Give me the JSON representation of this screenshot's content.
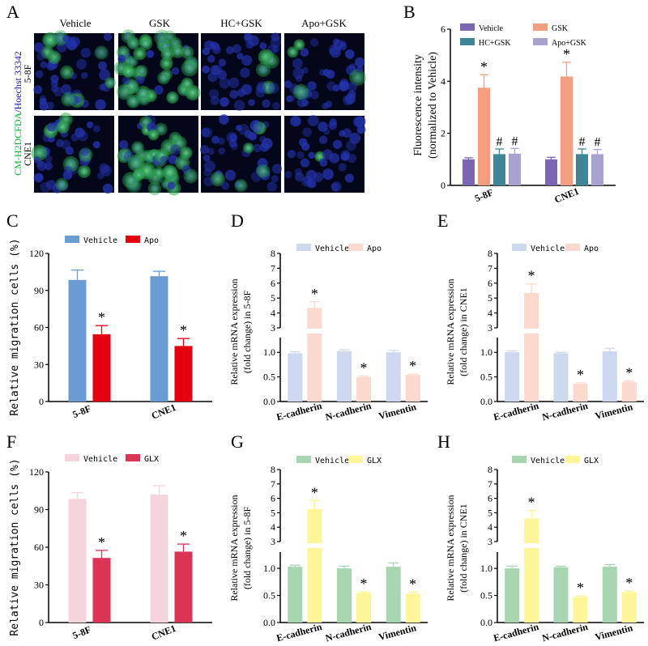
{
  "figure": {
    "panel_labels": [
      "A",
      "B",
      "C",
      "D",
      "E",
      "F",
      "G",
      "H"
    ]
  },
  "micro": {
    "columns": [
      "Vehicle",
      "GSK",
      "HC+GSK",
      "Apo+GSK"
    ],
    "rows": [
      "5-8F",
      "CNE1"
    ],
    "ylabel_green": "CM-H2DCFDA",
    "ylabel_sep": "/",
    "ylabel_blue": "Hoechst 33342",
    "green_level": [
      [
        0.18,
        0.85,
        0.12,
        0.1
      ],
      [
        0.1,
        0.8,
        0.08,
        0.08
      ]
    ]
  },
  "chart_data": [
    {
      "id": "B",
      "type": "bar",
      "title": "",
      "ylabel_lines": [
        "Fluorescence intensity",
        "(normalized to Vehicle)"
      ],
      "ylim": [
        0,
        6
      ],
      "yticks": [
        0,
        2,
        4,
        6
      ],
      "categories": [
        "5-8F",
        "CNE1"
      ],
      "series": [
        {
          "name": "Vehicle",
          "color": "#7b66b4",
          "values": [
            1.0,
            1.0
          ],
          "errors": [
            0.06,
            0.08
          ],
          "marks": [
            "",
            ""
          ]
        },
        {
          "name": "GSK",
          "color": "#f29e7f",
          "values": [
            3.75,
            4.18
          ],
          "errors": [
            0.5,
            0.55
          ],
          "marks": [
            "*",
            "*"
          ]
        },
        {
          "name": "HC+GSK",
          "color": "#3f8597",
          "values": [
            1.2,
            1.2
          ],
          "errors": [
            0.2,
            0.2
          ],
          "marks": [
            "#",
            "#"
          ]
        },
        {
          "name": "Apo+GSK",
          "color": "#a9a2cf",
          "values": [
            1.22,
            1.2
          ],
          "errors": [
            0.2,
            0.18
          ],
          "marks": [
            "#",
            "#"
          ]
        }
      ]
    },
    {
      "id": "C",
      "type": "bar",
      "ylabel_lines": [
        "Relative migration cells (%)"
      ],
      "ylim": [
        0,
        120
      ],
      "yticks": [
        0,
        30,
        60,
        90,
        120
      ],
      "categories": [
        "5-8F",
        "CNE1"
      ],
      "series": [
        {
          "name": "Vehicle",
          "color": "#6a9bd1",
          "values": [
            98.5,
            101.5
          ],
          "errors": [
            8,
            4
          ],
          "marks": [
            "",
            ""
          ]
        },
        {
          "name": "Apo",
          "color": "#e3000f",
          "values": [
            54.5,
            45.0
          ],
          "errors": [
            7,
            6
          ],
          "marks": [
            "*",
            "*"
          ]
        }
      ]
    },
    {
      "id": "D",
      "type": "bar",
      "ylabel_lines": [
        "Relative mRNA expression",
        "(fold change) in 5-8F"
      ],
      "broken_axis": true,
      "upper_range": [
        3,
        8
      ],
      "upper_ticks": [
        3,
        4,
        5,
        6,
        7,
        8
      ],
      "lower_range": [
        0,
        1.3
      ],
      "lower_ticks": [
        0.0,
        0.5,
        1.0
      ],
      "categories": [
        "E-cadherin",
        "N-cadherin",
        "Vimentin"
      ],
      "series": [
        {
          "name": "Vehicle",
          "color": "#cdd8ee",
          "values": [
            0.98,
            1.02,
            1.0
          ],
          "errors": [
            0.03,
            0.03,
            0.04
          ],
          "marks": [
            "",
            "",
            ""
          ]
        },
        {
          "name": "Apo",
          "color": "#fbd9cf",
          "values": [
            4.35,
            0.5,
            0.54
          ],
          "errors": [
            0.4,
            0.02,
            0.02
          ],
          "marks": [
            "*",
            "*",
            "*"
          ]
        }
      ]
    },
    {
      "id": "E",
      "type": "bar",
      "ylabel_lines": [
        "Relative mRNA expression",
        "(fold change) in CNE1"
      ],
      "broken_axis": true,
      "upper_range": [
        3,
        8
      ],
      "upper_ticks": [
        3,
        4,
        5,
        6,
        7,
        8
      ],
      "lower_range": [
        0,
        1.3
      ],
      "lower_ticks": [
        0.0,
        0.5,
        1.0
      ],
      "categories": [
        "E-cadherin",
        "N-cadherin",
        "Vimentin"
      ],
      "series": [
        {
          "name": "Vehicle",
          "color": "#cdd8ee",
          "values": [
            1.0,
            0.98,
            1.02
          ],
          "errors": [
            0.03,
            0.02,
            0.06
          ],
          "marks": [
            "",
            "",
            ""
          ]
        },
        {
          "name": "Apo",
          "color": "#fbd9cf",
          "values": [
            5.35,
            0.36,
            0.4
          ],
          "errors": [
            0.6,
            0.02,
            0.02
          ],
          "marks": [
            "*",
            "*",
            "*"
          ]
        }
      ]
    },
    {
      "id": "F",
      "type": "bar",
      "ylabel_lines": [
        "Relative migration cells (%)"
      ],
      "ylim": [
        0,
        120
      ],
      "yticks": [
        0,
        30,
        60,
        90,
        120
      ],
      "categories": [
        "5-8F",
        "CNE1"
      ],
      "series": [
        {
          "name": "Vehicle",
          "color": "#f6d4dc",
          "values": [
            98.5,
            102.0
          ],
          "errors": [
            5,
            7
          ],
          "marks": [
            "",
            ""
          ]
        },
        {
          "name": "GLX",
          "color": "#dc3454",
          "values": [
            51.5,
            56.5
          ],
          "errors": [
            6,
            6
          ],
          "marks": [
            "*",
            "*"
          ]
        }
      ]
    },
    {
      "id": "G",
      "type": "bar",
      "ylabel_lines": [
        "Relative mRNA expression",
        "(fold change) in 5-8F"
      ],
      "broken_axis": true,
      "upper_range": [
        3,
        8
      ],
      "upper_ticks": [
        3,
        4,
        5,
        6,
        7,
        8
      ],
      "lower_range": [
        0,
        1.3
      ],
      "lower_ticks": [
        0.0,
        0.5,
        1.0
      ],
      "categories": [
        "E-cadherin",
        "N-cadherin",
        "Vimentin"
      ],
      "series": [
        {
          "name": "Vehicle",
          "color": "#a7d5b0",
          "values": [
            1.03,
            1.0,
            1.03
          ],
          "errors": [
            0.03,
            0.04,
            0.07
          ],
          "marks": [
            "",
            "",
            ""
          ]
        },
        {
          "name": "GLX",
          "color": "#fdf598",
          "values": [
            5.25,
            0.55,
            0.53
          ],
          "errors": [
            0.6,
            0.02,
            0.03
          ],
          "marks": [
            "*",
            "*",
            "*"
          ]
        }
      ]
    },
    {
      "id": "H",
      "type": "bar",
      "ylabel_lines": [
        "Relative mRNA expression",
        "(fold change) in CNE1"
      ],
      "broken_axis": true,
      "upper_range": [
        3,
        8
      ],
      "upper_ticks": [
        3,
        4,
        5,
        6,
        7,
        8
      ],
      "lower_range": [
        0,
        1.3
      ],
      "lower_ticks": [
        0.0,
        0.5,
        1.0
      ],
      "categories": [
        "E-cadherin",
        "N-cadherin",
        "Vimentin"
      ],
      "series": [
        {
          "name": "Vehicle",
          "color": "#a7d5b0",
          "values": [
            1.0,
            1.02,
            1.03
          ],
          "errors": [
            0.04,
            0.02,
            0.04
          ],
          "marks": [
            "",
            "",
            ""
          ]
        },
        {
          "name": "GLX",
          "color": "#fdf598",
          "values": [
            4.6,
            0.47,
            0.56
          ],
          "errors": [
            0.55,
            0.02,
            0.02
          ],
          "marks": [
            "*",
            "*",
            "*"
          ]
        }
      ]
    }
  ]
}
